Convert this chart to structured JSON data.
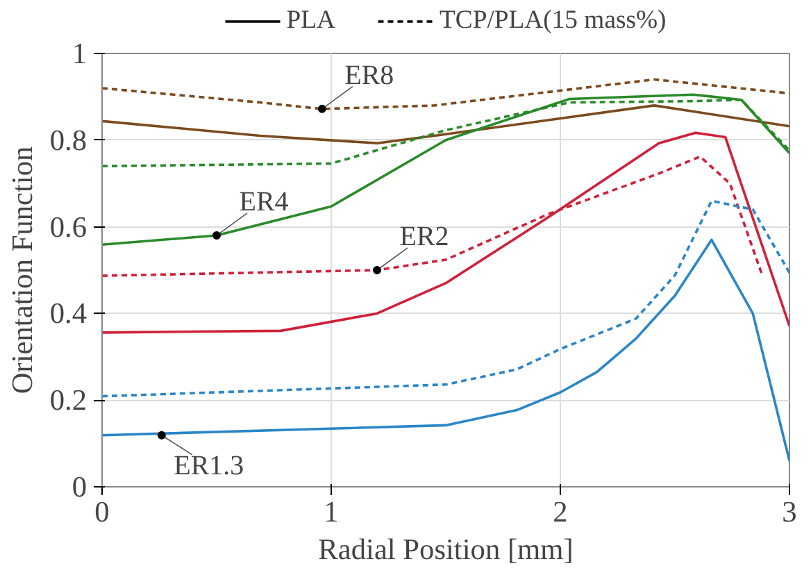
{
  "chart_data": {
    "type": "line",
    "xlabel": "Radial Position [mm]",
    "ylabel": "Orientation Function",
    "xlim": [
      0,
      3
    ],
    "ylim": [
      0,
      1
    ],
    "xticks": [
      0,
      1,
      2,
      3
    ],
    "yticks": [
      0,
      0.2,
      0.4,
      0.6,
      0.8,
      1
    ],
    "grid": true,
    "legend": "top",
    "marker": "none",
    "series": [
      {
        "name": "PLA",
        "color": "#000000",
        "line_style": "solid"
      },
      {
        "name": "TCP/PLA(15 mass%)",
        "color": "#000000",
        "line_style": "dashed"
      },
      {
        "color": "#7b4a1e",
        "line_style": "solid",
        "x": [
          0,
          0.69,
          1.2,
          1.45,
          2.41,
          3
        ],
        "values": [
          0.844,
          0.81,
          0.793,
          0.81,
          0.88,
          0.832
        ]
      },
      {
        "color": "#7b4a1e",
        "line_style": "dashed",
        "x": [
          0,
          0.69,
          0.96,
          1.45,
          2.41,
          3
        ],
        "values": [
          0.92,
          0.887,
          0.872,
          0.88,
          0.94,
          0.908
        ]
      },
      {
        "color": "#2a8a2a",
        "line_style": "solid",
        "x": [
          0,
          0.5,
          1.0,
          1.5,
          2.04,
          2.58,
          2.79,
          3
        ],
        "values": [
          0.559,
          0.58,
          0.647,
          0.8,
          0.895,
          0.905,
          0.893,
          0.77
        ]
      },
      {
        "color": "#2a8a2a",
        "line_style": "dashed",
        "x": [
          0,
          1.0,
          1.5,
          2.04,
          2.58,
          2.79,
          3
        ],
        "values": [
          0.74,
          0.746,
          0.823,
          0.887,
          0.89,
          0.893,
          0.776
        ]
      },
      {
        "color": "#d0203a",
        "line_style": "solid",
        "x": [
          0,
          0.78,
          1.2,
          1.5,
          1.95,
          2.43,
          2.59,
          2.72,
          3
        ],
        "values": [
          0.356,
          0.36,
          0.4,
          0.47,
          0.623,
          0.793,
          0.817,
          0.807,
          0.371
        ]
      },
      {
        "color": "#d0203a",
        "line_style": "dashed",
        "x": [
          0,
          1.2,
          1.5,
          1.95,
          2.43,
          2.61,
          2.74,
          2.88
        ],
        "values": [
          0.487,
          0.5,
          0.524,
          0.63,
          0.723,
          0.762,
          0.7,
          0.49
        ]
      },
      {
        "color": "#2a86c8",
        "line_style": "solid",
        "x": [
          0,
          1.5,
          1.81,
          2.0,
          2.16,
          2.33,
          2.5,
          2.66,
          2.84,
          3
        ],
        "values": [
          0.119,
          0.142,
          0.177,
          0.218,
          0.265,
          0.342,
          0.441,
          0.57,
          0.4,
          0.06
        ]
      },
      {
        "color": "#2a86c8",
        "line_style": "dashed",
        "x": [
          0,
          1.5,
          1.81,
          2.0,
          2.33,
          2.5,
          2.66,
          2.84,
          3
        ],
        "values": [
          0.209,
          0.236,
          0.271,
          0.318,
          0.388,
          0.488,
          0.66,
          0.64,
          0.494
        ]
      }
    ],
    "annotations": [
      {
        "text": "ER8",
        "x": 0.96,
        "y": 0.872
      },
      {
        "text": "ER4",
        "x": 0.5,
        "y": 0.58
      },
      {
        "text": "ER2",
        "x": 1.2,
        "y": 0.5
      },
      {
        "text": "ER1.3",
        "x": 0.26,
        "y": 0.119
      }
    ]
  }
}
